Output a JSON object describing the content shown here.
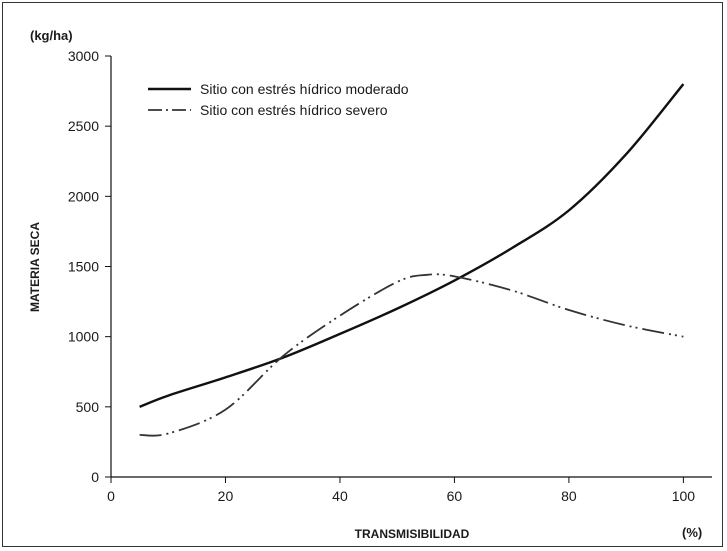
{
  "chart_data": {
    "type": "line",
    "xlabel": "TRANSMISIBILIDAD",
    "ylabel": "MATERIA SECA",
    "y_unit": "(kg/ha)",
    "x_unit": "(%)",
    "xlim": [
      0,
      105
    ],
    "ylim": [
      0,
      3000
    ],
    "x_ticks": [
      0,
      20,
      40,
      60,
      80,
      100
    ],
    "y_ticks": [
      0,
      500,
      1000,
      1500,
      2000,
      2500,
      3000
    ],
    "grid": false,
    "legend_position": "top-left",
    "series": [
      {
        "name": "Sitio con estrés hídrico moderado",
        "style": "solid",
        "color": "#111111",
        "x": [
          5,
          10,
          20,
          30,
          40,
          50,
          60,
          70,
          80,
          90,
          100
        ],
        "y": [
          500,
          580,
          710,
          850,
          1020,
          1200,
          1400,
          1630,
          1900,
          2300,
          2800
        ]
      },
      {
        "name": "Sitio con estrés hídrico severo",
        "style": "dash-dot-dot",
        "color": "#333333",
        "x": [
          5,
          10,
          20,
          30,
          40,
          50,
          55,
          60,
          70,
          80,
          90,
          100
        ],
        "y": [
          300,
          310,
          480,
          860,
          1150,
          1390,
          1440,
          1430,
          1330,
          1190,
          1080,
          1000
        ]
      }
    ]
  }
}
